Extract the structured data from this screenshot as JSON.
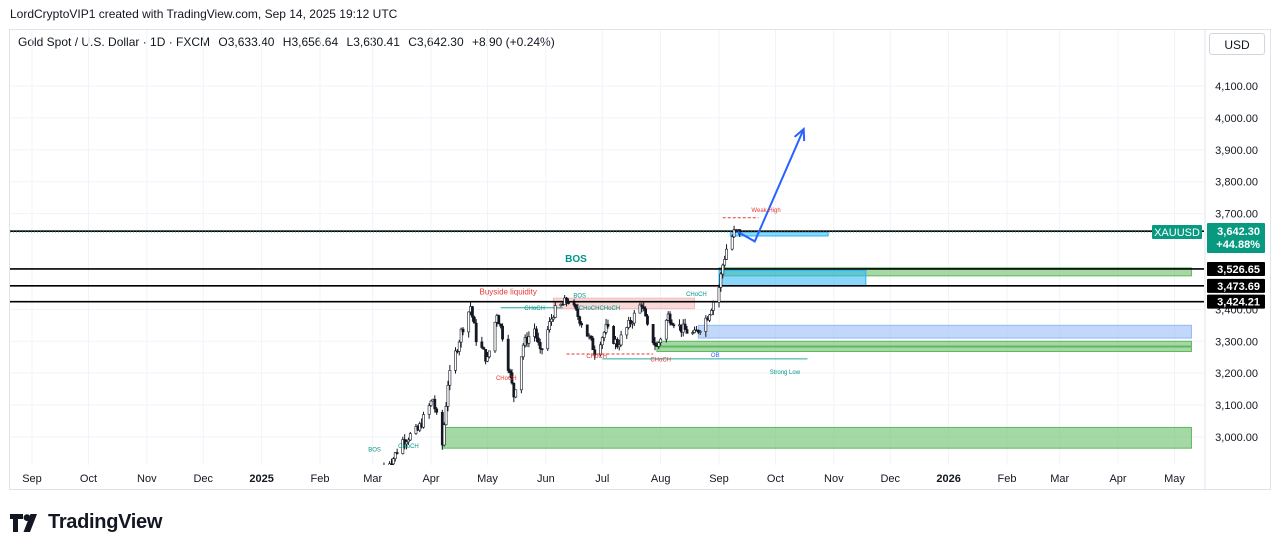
{
  "credit": "LordCryptoVIP1 created with TradingView.com, Sep 14, 2025 19:12 UTC",
  "legend": {
    "title": "Gold Spot / U.S. Dollar · 1D · FXCM",
    "open": "O3,633.40",
    "high": "H3,656.64",
    "low": "L3,630.41",
    "close": "C3,642.30",
    "change": "+8.90 (+0.24%)"
  },
  "currency_button": "USD",
  "brand": "TradingView",
  "chart_data": {
    "type": "candlestick",
    "symbol": "XAUUSD",
    "ylim": [
      2880,
      4200
    ],
    "y_ticks": [
      {
        "v": 3000,
        "label": "3,000.00"
      },
      {
        "v": 3100,
        "label": "3,100.00"
      },
      {
        "v": 3200,
        "label": "3,200.00"
      },
      {
        "v": 3300,
        "label": "3,300.00"
      },
      {
        "v": 3400,
        "label": "3,400.00"
      },
      {
        "v": 3700,
        "label": "3,700.00"
      },
      {
        "v": 3800,
        "label": "3,800.00"
      },
      {
        "v": 3900,
        "label": "3,900.00"
      },
      {
        "v": 4000,
        "label": "4,000.00"
      },
      {
        "v": 4100,
        "label": "4,100.00"
      }
    ],
    "x_ticks": [
      {
        "date": "2024-09-01",
        "label": "Sep",
        "bold": false
      },
      {
        "date": "2024-10-01",
        "label": "Oct",
        "bold": false
      },
      {
        "date": "2024-11-01",
        "label": "Nov",
        "bold": false
      },
      {
        "date": "2024-12-01",
        "label": "Dec",
        "bold": false
      },
      {
        "date": "2025-01-01",
        "label": "2025",
        "bold": true
      },
      {
        "date": "2025-02-01",
        "label": "Feb",
        "bold": false
      },
      {
        "date": "2025-03-01",
        "label": "Mar",
        "bold": false
      },
      {
        "date": "2025-04-01",
        "label": "Apr",
        "bold": false
      },
      {
        "date": "2025-05-01",
        "label": "May",
        "bold": false
      },
      {
        "date": "2025-06-01",
        "label": "Jun",
        "bold": false
      },
      {
        "date": "2025-07-01",
        "label": "Jul",
        "bold": false
      },
      {
        "date": "2025-08-01",
        "label": "Aug",
        "bold": false
      },
      {
        "date": "2025-09-01",
        "label": "Sep",
        "bold": false
      },
      {
        "date": "2025-10-01",
        "label": "Oct",
        "bold": false
      },
      {
        "date": "2025-11-01",
        "label": "Nov",
        "bold": false
      },
      {
        "date": "2025-12-01",
        "label": "Dec",
        "bold": false
      },
      {
        "date": "2026-01-01",
        "label": "2026",
        "bold": true
      },
      {
        "date": "2026-02-01",
        "label": "Feb",
        "bold": false
      },
      {
        "date": "2026-03-01",
        "label": "Mar",
        "bold": false
      },
      {
        "date": "2026-04-01",
        "label": "Apr",
        "bold": false
      },
      {
        "date": "2026-05-01",
        "label": "May",
        "bold": false
      }
    ],
    "price_path": [
      [
        "2025-03-07",
        2910
      ],
      [
        "2025-03-12",
        2935
      ],
      [
        "2025-03-17",
        2990
      ],
      [
        "2025-03-25",
        3020
      ],
      [
        "2025-04-02",
        3120
      ],
      [
        "2025-04-07",
        2975
      ],
      [
        "2025-04-10",
        3170
      ],
      [
        "2025-04-17",
        3330
      ],
      [
        "2025-04-22",
        3410
      ],
      [
        "2025-04-25",
        3310
      ],
      [
        "2025-05-01",
        3240
      ],
      [
        "2025-05-06",
        3390
      ],
      [
        "2025-05-09",
        3320
      ],
      [
        "2025-05-15",
        3130
      ],
      [
        "2025-05-20",
        3290
      ],
      [
        "2025-05-26",
        3340
      ],
      [
        "2025-05-29",
        3260
      ],
      [
        "2025-06-05",
        3390
      ],
      [
        "2025-06-13",
        3430
      ],
      [
        "2025-06-20",
        3360
      ],
      [
        "2025-06-27",
        3270
      ],
      [
        "2025-07-03",
        3340
      ],
      [
        "2025-07-09",
        3290
      ],
      [
        "2025-07-15",
        3350
      ],
      [
        "2025-07-22",
        3420
      ],
      [
        "2025-07-25",
        3340
      ],
      [
        "2025-07-30",
        3280
      ],
      [
        "2025-08-05",
        3380
      ],
      [
        "2025-08-12",
        3340
      ],
      [
        "2025-08-19",
        3320
      ],
      [
        "2025-08-26",
        3380
      ],
      [
        "2025-09-01",
        3470
      ],
      [
        "2025-09-03",
        3540
      ],
      [
        "2025-09-05",
        3590
      ],
      [
        "2025-09-09",
        3640
      ],
      [
        "2025-09-12",
        3642.3
      ]
    ],
    "horizontal_lines": [
      3645,
      3526.65,
      3473.69,
      3424.21
    ],
    "zones": [
      {
        "start": "2025-04-07",
        "end": "2026-05-10",
        "low": 2965,
        "high": 3030,
        "color": "#5cb85c"
      },
      {
        "start": "2025-09-01",
        "end": "2026-05-10",
        "low": 3505,
        "high": 3530,
        "color": "#5cb85c"
      },
      {
        "start": "2025-09-01",
        "end": "2025-11-18",
        "low": 3473,
        "high": 3522,
        "color": "#29b6f6"
      },
      {
        "start": "2025-08-21",
        "end": "2026-05-10",
        "low": 3310,
        "high": 3350,
        "color": "#90b8f8"
      },
      {
        "start": "2025-07-30",
        "end": "2026-05-10",
        "low": 3285,
        "high": 3300,
        "color": "#5cb85c"
      },
      {
        "start": "2025-07-30",
        "end": "2026-05-10",
        "low": 3268,
        "high": 3282,
        "color": "#5cb85c"
      },
      {
        "start": "2025-06-05",
        "end": "2025-08-19",
        "low": 3402,
        "high": 3435,
        "color": "#f4b8b8"
      },
      {
        "start": "2025-09-07",
        "end": "2025-10-29",
        "low": 3630,
        "high": 3642,
        "color": "#29b6f6"
      }
    ],
    "projection": [
      [
        "2025-09-11",
        3643
      ],
      [
        "2025-09-20",
        3613
      ],
      [
        "2025-10-16",
        3965
      ]
    ],
    "annotations": [
      {
        "text": "BOS",
        "date": "2025-06-17",
        "price": 3548,
        "color": "#009688",
        "size": 10
      },
      {
        "text": "Buyside liquidity",
        "date": "2025-05-12",
        "price": 3447,
        "color": "#e53935",
        "size": 8
      },
      {
        "text": "BOS",
        "date": "2025-06-19",
        "price": 3437,
        "color": "#009688",
        "size": 6
      },
      {
        "text": "CHoCH",
        "date": "2025-05-26",
        "price": 3398,
        "color": "#009688",
        "size": 6
      },
      {
        "text": "CHoCH",
        "date": "2025-06-24",
        "price": 3398,
        "color": "#009688",
        "size": 6
      },
      {
        "text": "CHoCH",
        "date": "2025-07-05",
        "price": 3398,
        "color": "#009688",
        "size": 6
      },
      {
        "text": "CHoCH",
        "date": "2025-08-20",
        "price": 3442,
        "color": "#009688",
        "size": 6
      },
      {
        "text": "CHoCH",
        "date": "2025-06-28",
        "price": 3248,
        "color": "#e53935",
        "size": 6
      },
      {
        "text": "CHoCH",
        "date": "2025-05-11",
        "price": 3179,
        "color": "#e53935",
        "size": 6
      },
      {
        "text": "CHoCH",
        "date": "2025-08-01",
        "price": 3236,
        "color": "#e53935",
        "size": 6
      },
      {
        "text": "Weak High",
        "date": "2025-09-26",
        "price": 3705,
        "color": "#e53935",
        "size": 6
      },
      {
        "text": "Strong Low",
        "date": "2025-10-06",
        "price": 3198,
        "color": "#009688",
        "size": 6
      },
      {
        "text": "OB",
        "date": "2025-08-30",
        "price": 3250,
        "color": "#2962ff",
        "size": 6
      },
      {
        "text": "BOS",
        "date": "2025-03-02",
        "price": 2955,
        "color": "#009688",
        "size": 6
      },
      {
        "text": "CHoCH",
        "date": "2025-03-20",
        "price": 2965,
        "color": "#009688",
        "size": 6
      }
    ],
    "price_labels": [
      {
        "text": "3,526.65",
        "price": 3526.65
      },
      {
        "text": "3,473.69",
        "price": 3473.69
      },
      {
        "text": "3,424.21",
        "price": 3424.21
      }
    ],
    "current": {
      "symbol": "XAUUSD",
      "price": "3,642.30",
      "change": "+44.88%",
      "value": 3642.3
    }
  }
}
